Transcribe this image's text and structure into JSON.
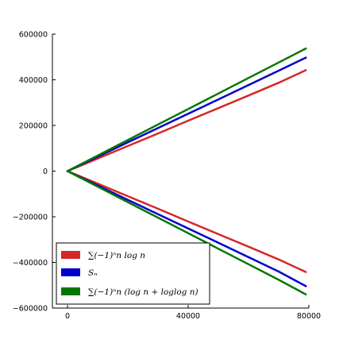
{
  "chart_data": {
    "type": "line",
    "title": "",
    "xlabel": "",
    "ylabel": "",
    "xlim": [
      -5000,
      80000
    ],
    "ylim": [
      -600000,
      600000
    ],
    "x_ticks": [
      0,
      40000,
      80000
    ],
    "x_tick_labels": [
      "0",
      "40000",
      "80000"
    ],
    "y_ticks": [
      -600000,
      -400000,
      -200000,
      0,
      200000,
      400000,
      600000
    ],
    "y_tick_labels": [
      "−600000",
      "−400000",
      "−200000",
      "0",
      "200000",
      "400000",
      "600000"
    ],
    "grid": false,
    "legend_position": "lower-left",
    "series": [
      {
        "name": "∑(−1)ⁿn log n",
        "color": "#d62728",
        "color_hex": "#cc0000",
        "x": [
          0,
          10000,
          20000,
          30000,
          40000,
          50000,
          60000,
          70000,
          79000
        ],
        "upper": [
          0,
          55000,
          110000,
          165000,
          221000,
          276000,
          331000,
          387000,
          442000
        ],
        "lower": [
          0,
          -55000,
          -110000,
          -165000,
          -221000,
          -276000,
          -331000,
          -387000,
          -442000
        ]
      },
      {
        "name": "Sₙ",
        "color": "#0000cc",
        "x": [
          0,
          10000,
          20000,
          30000,
          40000,
          50000,
          60000,
          70000,
          79000
        ],
        "upper": [
          0,
          63000,
          126000,
          189000,
          251000,
          314000,
          377000,
          440000,
          497000
        ],
        "lower": [
          0,
          -63000,
          -126000,
          -189000,
          -251000,
          -314000,
          -377000,
          -440000,
          -504000
        ]
      },
      {
        "name": "∑(−1)ⁿn (log n + loglog n)",
        "color": "#007700",
        "x": [
          0,
          10000,
          20000,
          30000,
          40000,
          50000,
          60000,
          70000,
          79000
        ],
        "upper": [
          0,
          68000,
          136000,
          204000,
          272000,
          340000,
          408000,
          476000,
          537000
        ],
        "lower": [
          0,
          -68000,
          -136000,
          -204000,
          -272000,
          -340000,
          -408000,
          -476000,
          -540000
        ]
      }
    ]
  }
}
